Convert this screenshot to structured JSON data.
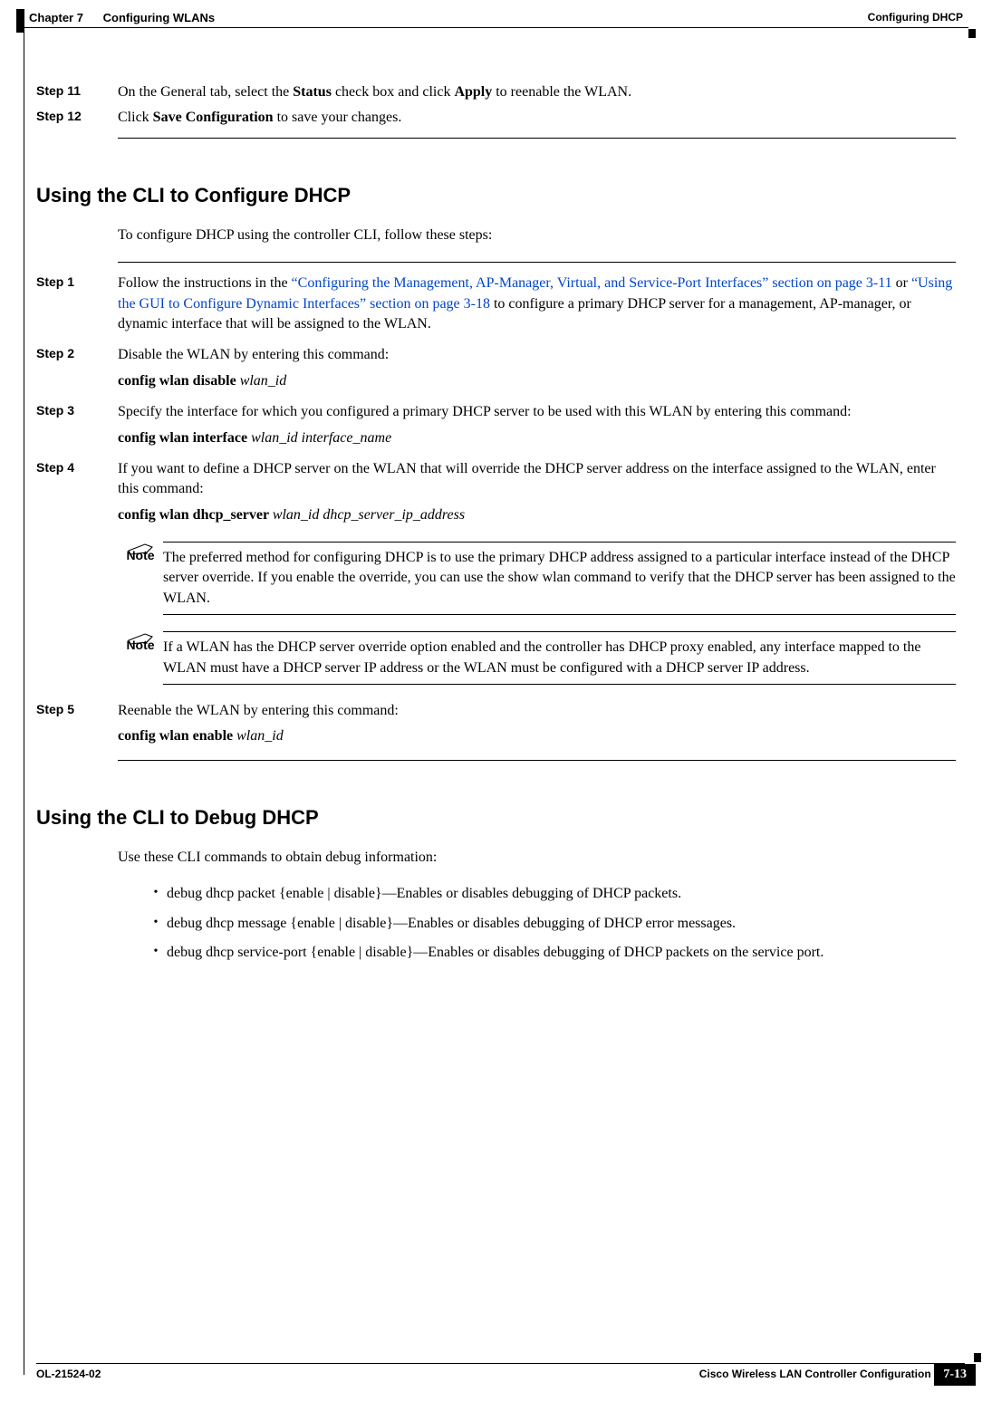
{
  "header": {
    "chapter": "Chapter 7",
    "title": "Configuring WLANs",
    "right": "Configuring DHCP"
  },
  "steps_top": [
    {
      "label": "Step 11",
      "html": "On the General tab, select the <span class=\"bold\">Status</span> check box and click <span class=\"bold\">Apply</span> to reenable the WLAN."
    },
    {
      "label": "Step 12",
      "html": "Click <span class=\"bold\">Save Configuration</span> to save your changes."
    }
  ],
  "section1": {
    "heading": "Using the CLI to Configure DHCP",
    "intro": "To configure DHCP using the controller CLI, follow these steps:",
    "steps": [
      {
        "label": "Step 1",
        "html": "Follow the instructions in the <span class=\"link\">“Configuring the Management, AP-Manager, Virtual, and Service-Port Interfaces” section on page 3-11</span> or <span class=\"link\">“Using the GUI to Configure Dynamic Interfaces” section on page 3-18</span> to configure a primary DHCP server for a management, AP-manager, or dynamic interface that will be assigned to the WLAN."
      },
      {
        "label": "Step 2",
        "html": "Disable the WLAN by entering this command:<div class=\"cmd\">config wlan disable <span class=\"italic\">wlan_id</span></div>"
      },
      {
        "label": "Step 3",
        "html": "Specify the interface for which you configured a primary DHCP server to be used with this WLAN by entering this command:<div class=\"cmd\">config wlan interface <span class=\"italic\">wlan_id interface_name</span></div>"
      },
      {
        "label": "Step 4",
        "html": "If you want to define a DHCP server on the WLAN that will override the DHCP server address on the interface assigned to the WLAN, enter this command:<div class=\"cmd\">config wlan dhcp_server <span class=\"italic\">wlan_id dhcp_server_ip_address</span></div>"
      }
    ],
    "note1": "The preferred method for configuring DHCP is to use the primary DHCP address assigned to a particular interface instead of the DHCP server override. If you enable the override, you can use the <span class=\"bold\">show wlan</span> command to verify that the DHCP server has been assigned to the WLAN.",
    "note2": "If a WLAN has the DHCP server override option enabled and the controller has DHCP proxy enabled, any interface mapped to the WLAN must have a DHCP server IP address or the WLAN must be configured with a DHCP server IP address.",
    "step5": {
      "label": "Step 5",
      "html": "Reenable the WLAN by entering this command:<div class=\"cmd\">config wlan enable <span class=\"italic\">wlan_id</span></div>"
    }
  },
  "section2": {
    "heading": "Using the CLI to Debug DHCP",
    "intro": "Use these CLI commands to obtain debug information:",
    "bullets": [
      "<span class=\"bold\">debug dhcp packet</span> {<span class=\"bold\">enable</span> | <span class=\"bold\">disable</span>}—Enables or disables debugging of DHCP packets.",
      "<span class=\"bold\">debug dhcp message</span> {<span class=\"bold\">enable</span> | <span class=\"bold\">disable</span>}—Enables or disables debugging of DHCP error messages.",
      "<span class=\"bold\">debug dhcp service-port</span> {<span class=\"bold\">enable</span> | <span class=\"bold\">disable</span>}—Enables or disables debugging of DHCP packets on the service port."
    ]
  },
  "footer": {
    "doc_title": "Cisco Wireless LAN Controller Configuration Guide",
    "doc_id": "OL-21524-02",
    "page": "7-13"
  },
  "labels": {
    "note": "Note"
  },
  "colors": {
    "link": "#0046c8",
    "text": "#000000",
    "bg": "#ffffff"
  }
}
